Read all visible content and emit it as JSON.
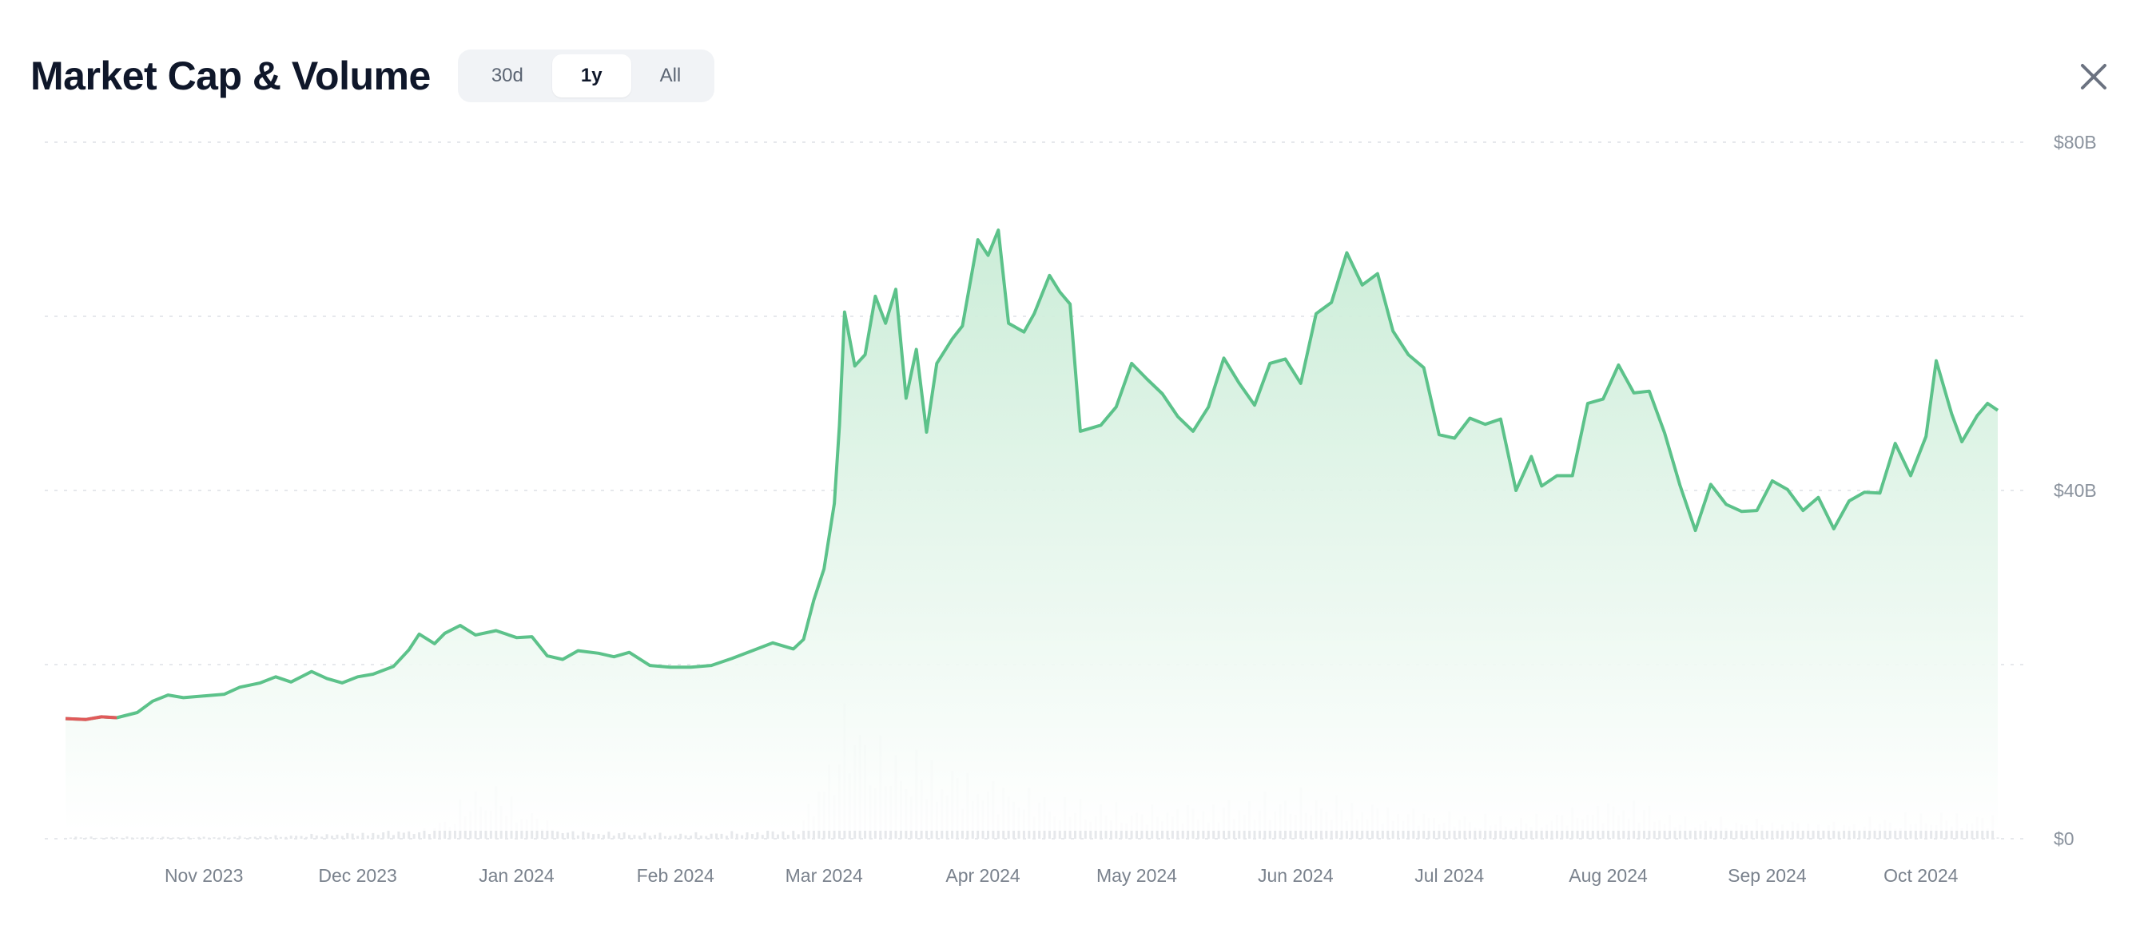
{
  "header": {
    "title": "Market Cap & Volume",
    "ranges": [
      {
        "label": "30d",
        "active": false
      },
      {
        "label": "1y",
        "active": true
      },
      {
        "label": "All",
        "active": false
      }
    ]
  },
  "close_icon": "close-icon",
  "colors": {
    "line_up": "#5cc28a",
    "line_down": "#e05a5a",
    "area_top": "#d6f1e0",
    "volume": "#e6e8eb",
    "grid": "#e6e8ec"
  },
  "chart_data": {
    "type": "area",
    "title": "",
    "xlabel": "",
    "ylabel": "",
    "ylim": [
      0,
      80
    ],
    "y_unit": "B USD",
    "y_ticks": [
      {
        "value": 0,
        "label": "$0"
      },
      {
        "value": 40,
        "label": "$40B"
      },
      {
        "value": 80,
        "label": "$80B"
      }
    ],
    "x_ticks": [
      {
        "value": "2023-11-01",
        "label": "Nov 2023"
      },
      {
        "value": "2023-12-01",
        "label": "Dec 2023"
      },
      {
        "value": "2024-01-01",
        "label": "Jan 2024"
      },
      {
        "value": "2024-02-01",
        "label": "Feb 2024"
      },
      {
        "value": "2024-03-01",
        "label": "Mar 2024"
      },
      {
        "value": "2024-04-01",
        "label": "Apr 2024"
      },
      {
        "value": "2024-05-01",
        "label": "May 2024"
      },
      {
        "value": "2024-06-01",
        "label": "Jun 2024"
      },
      {
        "value": "2024-07-01",
        "label": "Jul 2024"
      },
      {
        "value": "2024-08-01",
        "label": "Aug 2024"
      },
      {
        "value": "2024-09-01",
        "label": "Sep 2024"
      },
      {
        "value": "2024-10-01",
        "label": "Oct 2024"
      }
    ],
    "grid": true,
    "series": [
      {
        "values_market_cap": [
          [
            "2023-10-05",
            13.8
          ],
          [
            "2023-10-09",
            13.7
          ],
          [
            "2023-10-12",
            14.0
          ],
          [
            "2023-10-15",
            13.9
          ],
          [
            "2023-10-19",
            14.5
          ],
          [
            "2023-10-22",
            15.8
          ],
          [
            "2023-10-25",
            16.5
          ],
          [
            "2023-10-28",
            16.2
          ],
          [
            "2023-11-01",
            16.4
          ],
          [
            "2023-11-05",
            16.6
          ],
          [
            "2023-11-08",
            17.4
          ],
          [
            "2023-11-12",
            17.9
          ],
          [
            "2023-11-15",
            18.6
          ],
          [
            "2023-11-18",
            18.0
          ],
          [
            "2023-11-22",
            19.2
          ],
          [
            "2023-11-25",
            18.4
          ],
          [
            "2023-11-28",
            17.9
          ],
          [
            "2023-12-01",
            18.6
          ],
          [
            "2023-12-04",
            18.9
          ],
          [
            "2023-12-08",
            19.8
          ],
          [
            "2023-12-11",
            21.7
          ],
          [
            "2023-12-13",
            23.5
          ],
          [
            "2023-12-16",
            22.4
          ],
          [
            "2023-12-18",
            23.6
          ],
          [
            "2023-12-21",
            24.5
          ],
          [
            "2023-12-24",
            23.4
          ],
          [
            "2023-12-28",
            23.9
          ],
          [
            "2024-01-01",
            23.1
          ],
          [
            "2024-01-04",
            23.2
          ],
          [
            "2024-01-07",
            21.0
          ],
          [
            "2024-01-10",
            20.6
          ],
          [
            "2024-01-13",
            21.6
          ],
          [
            "2024-01-17",
            21.3
          ],
          [
            "2024-01-20",
            20.9
          ],
          [
            "2024-01-23",
            21.4
          ],
          [
            "2024-01-27",
            19.9
          ],
          [
            "2024-01-31",
            19.7
          ],
          [
            "2024-02-04",
            19.7
          ],
          [
            "2024-02-08",
            19.9
          ],
          [
            "2024-02-12",
            20.7
          ],
          [
            "2024-02-16",
            21.6
          ],
          [
            "2024-02-20",
            22.5
          ],
          [
            "2024-02-24",
            21.8
          ],
          [
            "2024-02-26",
            22.9
          ],
          [
            "2024-02-28",
            27.4
          ],
          [
            "2024-03-01",
            31.0
          ],
          [
            "2024-03-03",
            38.5
          ],
          [
            "2024-03-04",
            47.5
          ],
          [
            "2024-03-05",
            60.5
          ],
          [
            "2024-03-07",
            54.3
          ],
          [
            "2024-03-09",
            55.6
          ],
          [
            "2024-03-11",
            62.3
          ],
          [
            "2024-03-13",
            59.2
          ],
          [
            "2024-03-15",
            63.1
          ],
          [
            "2024-03-17",
            50.6
          ],
          [
            "2024-03-19",
            56.2
          ],
          [
            "2024-03-21",
            46.7
          ],
          [
            "2024-03-23",
            54.6
          ],
          [
            "2024-03-26",
            57.4
          ],
          [
            "2024-03-28",
            58.9
          ],
          [
            "2024-03-31",
            68.8
          ],
          [
            "2024-04-02",
            67.0
          ],
          [
            "2024-04-04",
            69.9
          ],
          [
            "2024-04-06",
            59.2
          ],
          [
            "2024-04-09",
            58.2
          ],
          [
            "2024-04-11",
            60.3
          ],
          [
            "2024-04-14",
            64.7
          ],
          [
            "2024-04-16",
            62.8
          ],
          [
            "2024-04-18",
            61.4
          ],
          [
            "2024-04-20",
            46.8
          ],
          [
            "2024-04-24",
            47.5
          ],
          [
            "2024-04-27",
            49.6
          ],
          [
            "2024-04-30",
            54.6
          ],
          [
            "2024-05-03",
            52.8
          ],
          [
            "2024-05-06",
            51.1
          ],
          [
            "2024-05-09",
            48.5
          ],
          [
            "2024-05-12",
            46.8
          ],
          [
            "2024-05-15",
            49.6
          ],
          [
            "2024-05-18",
            55.2
          ],
          [
            "2024-05-21",
            52.3
          ],
          [
            "2024-05-24",
            49.8
          ],
          [
            "2024-05-27",
            54.6
          ],
          [
            "2024-05-30",
            55.1
          ],
          [
            "2024-06-02",
            52.3
          ],
          [
            "2024-06-05",
            60.3
          ],
          [
            "2024-06-08",
            61.6
          ],
          [
            "2024-06-11",
            67.3
          ],
          [
            "2024-06-14",
            63.6
          ],
          [
            "2024-06-17",
            64.9
          ],
          [
            "2024-06-20",
            58.3
          ],
          [
            "2024-06-23",
            55.6
          ],
          [
            "2024-06-26",
            54.1
          ],
          [
            "2024-06-29",
            46.4
          ],
          [
            "2024-07-02",
            46.0
          ],
          [
            "2024-07-05",
            48.3
          ],
          [
            "2024-07-08",
            47.6
          ],
          [
            "2024-07-11",
            48.2
          ],
          [
            "2024-07-14",
            40.0
          ],
          [
            "2024-07-17",
            43.9
          ],
          [
            "2024-07-19",
            40.5
          ],
          [
            "2024-07-22",
            41.7
          ],
          [
            "2024-07-25",
            41.7
          ],
          [
            "2024-07-28",
            50.0
          ],
          [
            "2024-07-31",
            50.5
          ],
          [
            "2024-08-03",
            54.4
          ],
          [
            "2024-08-06",
            51.2
          ],
          [
            "2024-08-09",
            51.4
          ],
          [
            "2024-08-12",
            46.6
          ],
          [
            "2024-08-15",
            40.6
          ],
          [
            "2024-08-18",
            35.4
          ],
          [
            "2024-08-21",
            40.7
          ],
          [
            "2024-08-24",
            38.4
          ],
          [
            "2024-08-27",
            37.6
          ],
          [
            "2024-08-30",
            37.7
          ],
          [
            "2024-09-02",
            41.1
          ],
          [
            "2024-09-05",
            40.1
          ],
          [
            "2024-09-08",
            37.7
          ],
          [
            "2024-09-11",
            39.2
          ],
          [
            "2024-09-14",
            35.6
          ],
          [
            "2024-09-17",
            38.8
          ],
          [
            "2024-09-20",
            39.8
          ],
          [
            "2024-09-23",
            39.7
          ],
          [
            "2024-09-26",
            45.4
          ],
          [
            "2024-09-29",
            41.7
          ],
          [
            "2024-10-02",
            46.2
          ],
          [
            "2024-10-04",
            54.9
          ],
          [
            "2024-10-07",
            48.8
          ],
          [
            "2024-10-09",
            45.6
          ],
          [
            "2024-10-12",
            48.6
          ],
          [
            "2024-10-14",
            50.0
          ],
          [
            "2024-10-16",
            49.2
          ]
        ]
      }
    ],
    "volume_note_omitted": true,
    "volume_values": [
      [
        "2023-11-01",
        0.2
      ],
      [
        "2023-11-15",
        0.3
      ],
      [
        "2023-12-01",
        0.6
      ],
      [
        "2023-12-15",
        1.0
      ],
      [
        "2023-12-26",
        5.5
      ],
      [
        "2024-01-10",
        0.8
      ],
      [
        "2024-02-01",
        0.5
      ],
      [
        "2024-02-25",
        0.9
      ],
      [
        "2024-03-05",
        12.0
      ],
      [
        "2024-03-06",
        14.0
      ],
      [
        "2024-03-12",
        9.0
      ],
      [
        "2024-03-20",
        8.0
      ],
      [
        "2024-04-01",
        6.0
      ],
      [
        "2024-04-15",
        4.0
      ],
      [
        "2024-05-01",
        3.0
      ],
      [
        "2024-05-15",
        3.5
      ],
      [
        "2024-06-01",
        4.5
      ],
      [
        "2024-06-15",
        3.5
      ],
      [
        "2024-07-01",
        2.5
      ],
      [
        "2024-07-15",
        2.0
      ],
      [
        "2024-08-05",
        4.0
      ],
      [
        "2024-08-15",
        2.0
      ],
      [
        "2024-09-01",
        1.8
      ],
      [
        "2024-09-15",
        1.6
      ],
      [
        "2024-10-01",
        2.5
      ],
      [
        "2024-10-15",
        2.3
      ]
    ]
  }
}
